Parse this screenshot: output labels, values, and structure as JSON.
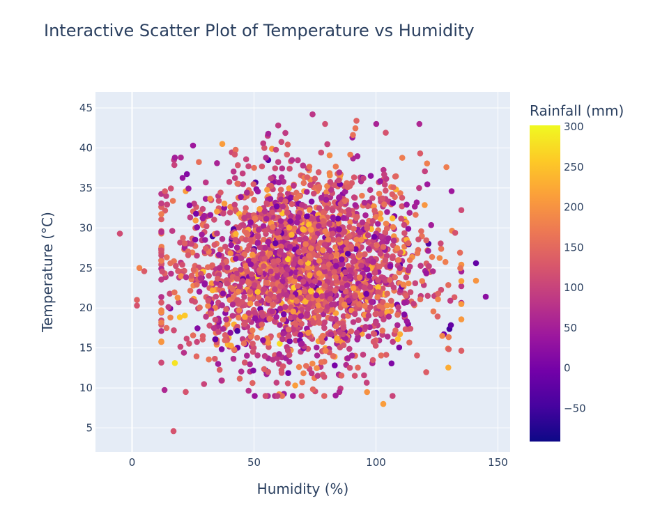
{
  "chart_data": {
    "type": "scatter",
    "title": "Interactive Scatter Plot of Temperature vs Humidity",
    "xlabel": "Humidity (%)",
    "ylabel": "Temperature (°C)",
    "xlim": [
      -15,
      155
    ],
    "ylim": [
      2,
      47
    ],
    "x_ticks": [
      0,
      50,
      100,
      150
    ],
    "y_ticks": [
      5,
      10,
      15,
      20,
      25,
      30,
      35,
      40,
      45
    ],
    "grid": true,
    "plot_background": "#e5ecf6",
    "colorbar": {
      "title": "Rainfall (mm)",
      "range": [
        -93,
        300
      ],
      "ticks": [
        -50,
        0,
        50,
        100,
        150,
        200,
        250,
        300
      ],
      "tick_labels": [
        "−50",
        "0",
        "50",
        "100",
        "150",
        "200",
        "250",
        "300"
      ],
      "colorscale": [
        "#0d0887",
        "#46039f",
        "#7201a8",
        "#9c179e",
        "#bd3786",
        "#d8576b",
        "#ed7953",
        "#fb9f3a",
        "#fdca26",
        "#f0f921"
      ]
    },
    "cluster": {
      "humidity_mean": 70,
      "humidity_sd": 25,
      "temperature_mean": 25,
      "temperature_sd": 6,
      "rainfall_mean": 110,
      "rainfall_sd": 55,
      "point_count": 2500
    },
    "outliers": [
      {
        "x": -5,
        "y": 29.3,
        "c": 110
      },
      {
        "x": 17,
        "y": 4.6,
        "c": 120
      },
      {
        "x": 22,
        "y": 9.5,
        "c": 120
      },
      {
        "x": 74,
        "y": 44.2,
        "c": 80
      },
      {
        "x": 145,
        "y": 21.4,
        "c": 20
      },
      {
        "x": 141,
        "y": 23.4,
        "c": 200
      },
      {
        "x": 141,
        "y": 25.6,
        "c": -20
      },
      {
        "x": 131,
        "y": 34.6,
        "c": 40
      },
      {
        "x": 103,
        "y": 8.0,
        "c": 210
      },
      {
        "x": 37,
        "y": 40.5,
        "c": 210
      },
      {
        "x": 25,
        "y": 40.3,
        "c": 40
      },
      {
        "x": 20,
        "y": 38.8,
        "c": 60
      },
      {
        "x": 2,
        "y": 21.0,
        "c": 140
      },
      {
        "x": 2,
        "y": 20.3,
        "c": 120
      },
      {
        "x": 3,
        "y": 25.0,
        "c": 180
      },
      {
        "x": 5,
        "y": 24.6,
        "c": 130
      },
      {
        "x": 92,
        "y": 43.4,
        "c": 140
      },
      {
        "x": 104,
        "y": 41.9,
        "c": 120
      },
      {
        "x": 85,
        "y": 9.5,
        "c": 60
      }
    ]
  }
}
